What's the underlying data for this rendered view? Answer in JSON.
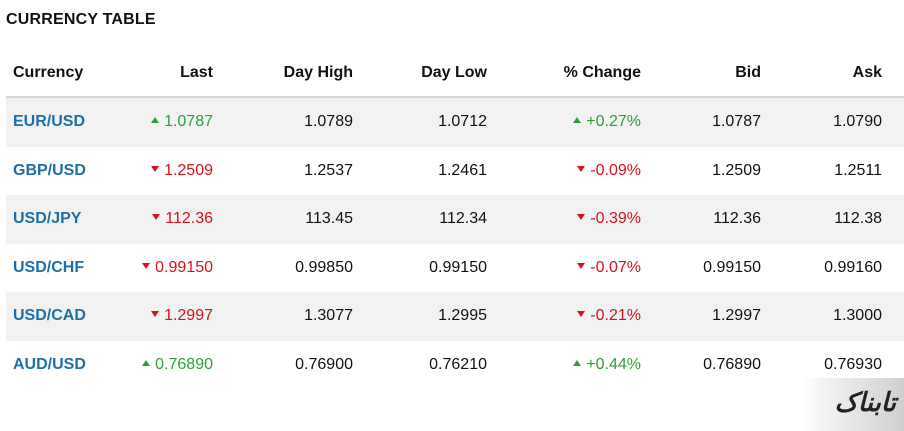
{
  "title": "CURRENCY TABLE",
  "columns": [
    "Currency",
    "Last",
    "Day High",
    "Day Low",
    "% Change",
    "Bid",
    "Ask"
  ],
  "colors": {
    "up": "#2e9e3a",
    "down": "#d8111b",
    "pair": "#1f6ea8"
  },
  "rows": [
    {
      "pair": "EUR/USD",
      "direction": "up",
      "last": "1.0787",
      "high": "1.0789",
      "low": "1.0712",
      "change": "+0.27%",
      "bid": "1.0787",
      "ask": "1.0790"
    },
    {
      "pair": "GBP/USD",
      "direction": "down",
      "last": "1.2509",
      "high": "1.2537",
      "low": "1.2461",
      "change": "-0.09%",
      "bid": "1.2509",
      "ask": "1.2511"
    },
    {
      "pair": "USD/JPY",
      "direction": "down",
      "last": "112.36",
      "high": "113.45",
      "low": "112.34",
      "change": "-0.39%",
      "bid": "112.36",
      "ask": "112.38"
    },
    {
      "pair": "USD/CHF",
      "direction": "down",
      "last": "0.99150",
      "high": "0.99850",
      "low": "0.99150",
      "change": "-0.07%",
      "bid": "0.99150",
      "ask": "0.99160"
    },
    {
      "pair": "USD/CAD",
      "direction": "down",
      "last": "1.2997",
      "high": "1.3077",
      "low": "1.2995",
      "change": "-0.21%",
      "bid": "1.2997",
      "ask": "1.3000"
    },
    {
      "pair": "AUD/USD",
      "direction": "up",
      "last": "0.76890",
      "high": "0.76900",
      "low": "0.76210",
      "change": "+0.44%",
      "bid": "0.76890",
      "ask": "0.76930"
    }
  ],
  "watermark": "تابناک"
}
